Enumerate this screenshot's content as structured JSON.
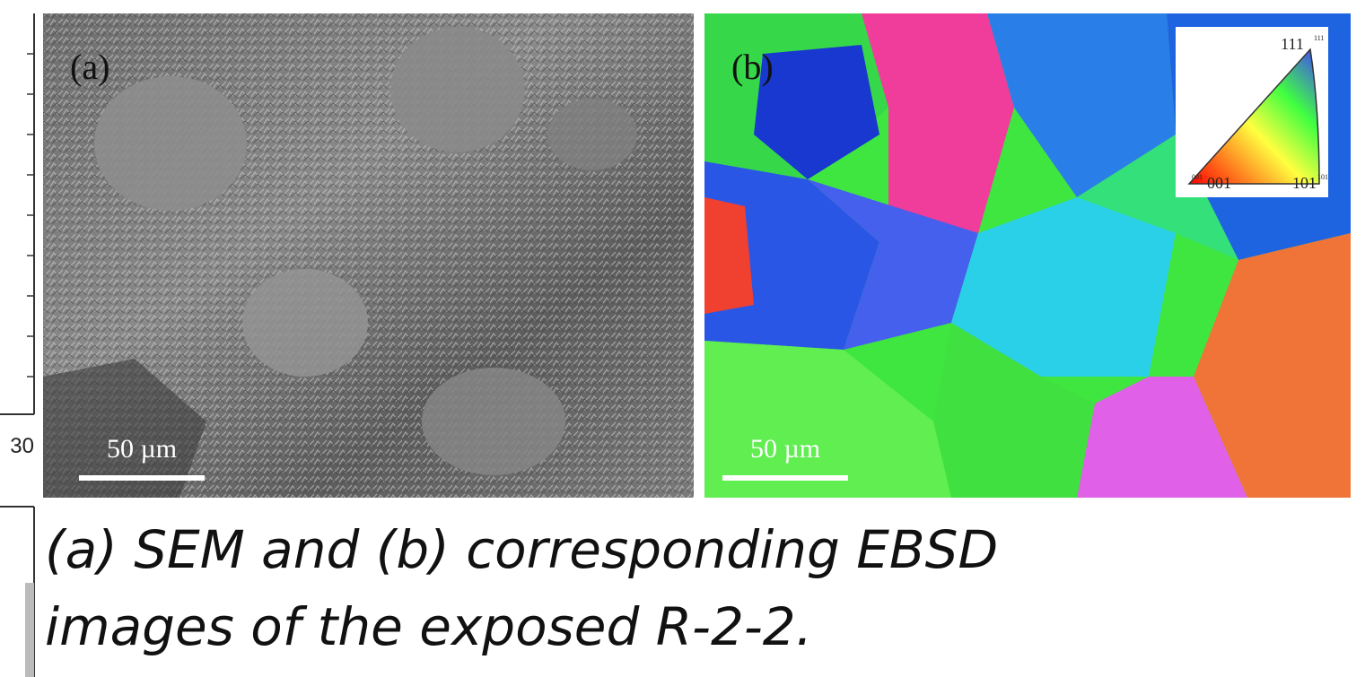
{
  "figure": {
    "left_axis_label": "30",
    "panel_a": {
      "label": "(a)",
      "scale_bar": "50 µm"
    },
    "panel_b": {
      "label": "(b)",
      "scale_bar": "50 µm",
      "inset": {
        "top": "111",
        "top_small": "111",
        "left": "001",
        "left_small": "001",
        "right": "101",
        "right_small": "101"
      }
    },
    "caption": {
      "lines": [
        "(a) SEM and (b) corresponding EBSD",
        "images of the exposed R-2-2."
      ]
    }
  }
}
